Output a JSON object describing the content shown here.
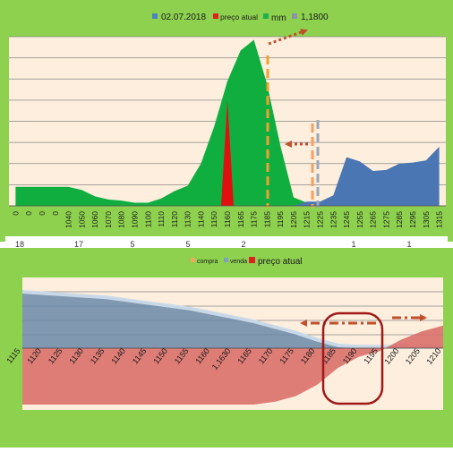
{
  "chart_data": [
    {
      "type": "area",
      "legend": [
        {
          "name": "02.07.2018",
          "color": "#4f81bd"
        },
        {
          "name": "preço atual",
          "color": "#e02020"
        },
        {
          "name": "mm",
          "color": "#22b04c"
        },
        {
          "name": "1,1800",
          "color": "#8a93a8"
        }
      ],
      "x_ticks": [
        "0",
        "0",
        "0",
        "0",
        "1040",
        "1050",
        "1060",
        "1070",
        "1080",
        "1090",
        "1100",
        "1110",
        "1120",
        "1130",
        "1140",
        "1150",
        "1160",
        "1165",
        "1175",
        "1185",
        "1195",
        "1205",
        "1215",
        "1225",
        "1235",
        "1245",
        "1255",
        "1265",
        "1275",
        "1285",
        "1295",
        "1305",
        "1315"
      ],
      "partial_tick_labels": [
        "18",
        "17",
        "5",
        "5",
        "2",
        "1",
        "1"
      ],
      "ylim": [
        0,
        16
      ],
      "series": [
        {
          "name": "mm",
          "color": "#0fae3f",
          "values": [
            1.8,
            1.8,
            1.8,
            1.8,
            1.8,
            1.5,
            0.9,
            0.6,
            0.5,
            0.3,
            0.3,
            0.7,
            1.4,
            1.9,
            4.0,
            7.5,
            11.8,
            14.7,
            15.7,
            11.5,
            5.7,
            0.8,
            0.3,
            0,
            0,
            0,
            0,
            0,
            0,
            0,
            0,
            0,
            0
          ]
        },
        {
          "name": "preço atual",
          "color": "#e01010",
          "values": [
            0,
            0,
            0,
            0,
            0,
            0,
            0,
            0,
            0,
            0,
            0,
            0,
            0,
            0,
            0,
            0,
            10.0,
            0,
            0,
            0,
            0,
            0,
            0,
            0,
            0,
            0,
            0,
            0,
            0,
            0,
            0,
            0,
            0
          ]
        },
        {
          "name": "02.07.2018",
          "color": "#4a76b3",
          "values": [
            0,
            0,
            0,
            0,
            0,
            0,
            0,
            0,
            0,
            0,
            0,
            0,
            0,
            0,
            0,
            0,
            0,
            0,
            0,
            0,
            0,
            0,
            0.4,
            0.4,
            1.0,
            4.6,
            4.2,
            3.3,
            3.4,
            4.0,
            4.1,
            4.3,
            5.6
          ]
        }
      ]
    },
    {
      "type": "area",
      "legend": [
        {
          "name": "compra",
          "color": "#f0a860"
        },
        {
          "name": "venda",
          "color": "#7fa0c0"
        },
        {
          "name": "preço atual",
          "color": "#e02020"
        }
      ],
      "categories": [
        "1115",
        "1120",
        "1125",
        "1130",
        "1135",
        "1140",
        "1145",
        "1150",
        "1155",
        "1160",
        "1,1630",
        "1165",
        "1170",
        "1175",
        "1180",
        "1185",
        "1190",
        "1195",
        "1200",
        "1205",
        "1210"
      ],
      "series": [
        {
          "name": "venda",
          "color": "#6a8aa8",
          "values": [
            4.0,
            3.9,
            3.8,
            3.7,
            3.6,
            3.4,
            3.2,
            3.0,
            2.8,
            2.5,
            2.2,
            1.9,
            1.5,
            1.1,
            0.6,
            0.2,
            0.1,
            0.1,
            0.1,
            0.1,
            0.1
          ]
        },
        {
          "name": "compra",
          "color": "#d9706a",
          "values": [
            -4.0,
            -4.0,
            -4.0,
            -4.0,
            -4.0,
            -4.0,
            -4.0,
            -4.0,
            -4.0,
            -4.0,
            -4.0,
            -4.0,
            -3.8,
            -3.4,
            -2.6,
            -1.4,
            -0.6,
            -0.2,
            0.6,
            1.2,
            1.6
          ]
        }
      ]
    }
  ]
}
